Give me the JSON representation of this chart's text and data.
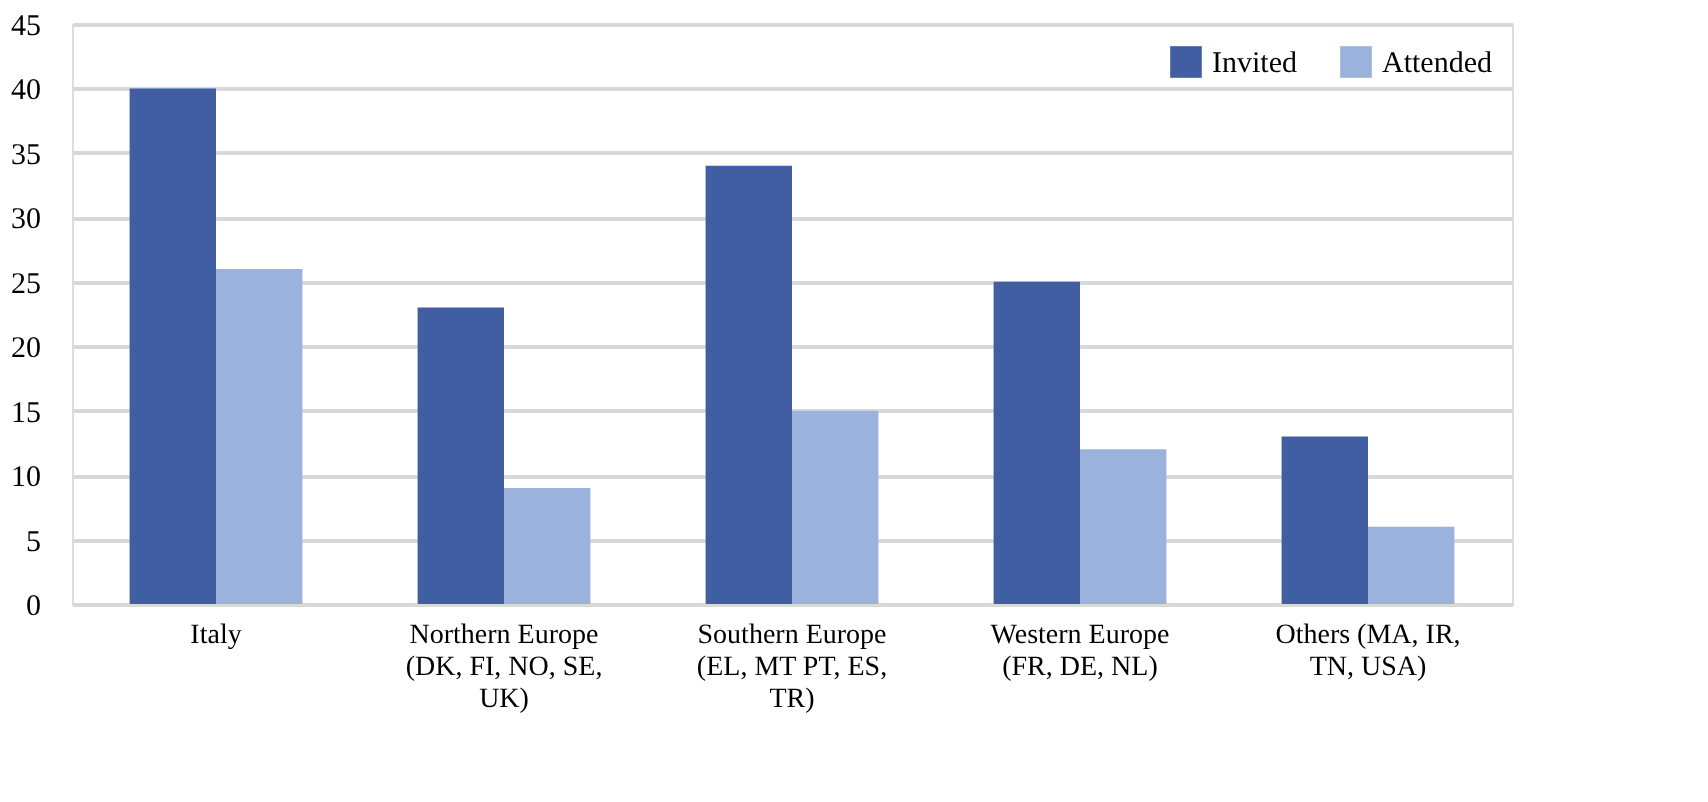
{
  "chart_data": {
    "type": "bar",
    "categories": [
      "Italy",
      "Northern Europe (DK, FI, NO, SE, UK)",
      "Southern Europe (EL, MT PT, ES, TR)",
      "Western Europe (FR, DE, NL)",
      "Others (MA, IR, TN, USA)"
    ],
    "series": [
      {
        "name": "Invited",
        "color": "#405ea1",
        "values": [
          40,
          23,
          34,
          25,
          13
        ]
      },
      {
        "name": "Attended",
        "color": "#9bb2dc",
        "values": [
          26,
          9,
          15,
          12,
          6
        ]
      }
    ],
    "ylim": [
      0,
      45
    ],
    "yticks": [
      0,
      5,
      10,
      15,
      20,
      25,
      30,
      35,
      40,
      45
    ],
    "grid": "y",
    "legend": "top right"
  }
}
